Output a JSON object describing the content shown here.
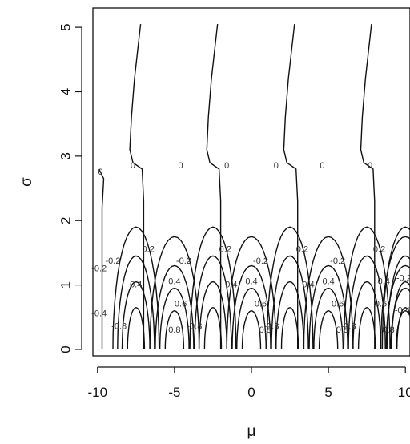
{
  "chart_data": {
    "type": "contour",
    "title": "",
    "xlabel": "μ",
    "ylabel": "σ",
    "xlim": [
      -10.3,
      10.3
    ],
    "ylim": [
      -0.1,
      5.3
    ],
    "x_ticks": [
      -10,
      -5,
      0,
      5,
      10
    ],
    "x_tick_labels": [
      "-10",
      "-5",
      "0",
      "5",
      "10"
    ],
    "y_ticks": [
      0,
      1,
      2,
      3,
      4,
      5
    ],
    "y_tick_labels": [
      "0",
      "1",
      "2",
      "3",
      "4",
      "5"
    ],
    "grid": false,
    "contour_levels": [
      -0.8,
      -0.6,
      -0.4,
      -0.2,
      0,
      0.2,
      0.4,
      0.6,
      0.8
    ],
    "period_mu": 5,
    "zero_contour_mu": [
      -10,
      -7.5,
      -2.5,
      2.5,
      7.5
    ],
    "contour_labels": [
      {
        "text": "0",
        "mu": -9.8,
        "sigma": 2.75
      },
      {
        "text": "0",
        "mu": -7.7,
        "sigma": 2.85
      },
      {
        "text": "0",
        "mu": -4.6,
        "sigma": 2.85
      },
      {
        "text": "0",
        "mu": -1.6,
        "sigma": 2.85
      },
      {
        "text": "0",
        "mu": 1.6,
        "sigma": 2.85
      },
      {
        "text": "0",
        "mu": 4.6,
        "sigma": 2.85
      },
      {
        "text": "0",
        "mu": 7.7,
        "sigma": 2.85
      },
      {
        "text": "-0.2",
        "mu": -9.9,
        "sigma": 1.25
      },
      {
        "text": "-0.2",
        "mu": -9.0,
        "sigma": 1.37
      },
      {
        "text": "-0.2",
        "mu": -4.4,
        "sigma": 1.37
      },
      {
        "text": "-0.2",
        "mu": 0.6,
        "sigma": 1.37
      },
      {
        "text": "-0.2",
        "mu": 5.6,
        "sigma": 1.37
      },
      {
        "text": "-0.2",
        "mu": 9.9,
        "sigma": 1.1
      },
      {
        "text": "0.2",
        "mu": -6.7,
        "sigma": 1.55
      },
      {
        "text": "0.2",
        "mu": -1.7,
        "sigma": 1.55
      },
      {
        "text": "0.2",
        "mu": 3.3,
        "sigma": 1.55
      },
      {
        "text": "0.2",
        "mu": 8.3,
        "sigma": 1.55
      },
      {
        "text": "-0.4",
        "mu": -9.9,
        "sigma": 0.55
      },
      {
        "text": "-0.4",
        "mu": -7.6,
        "sigma": 1.0
      },
      {
        "text": "-0.4",
        "mu": -1.4,
        "sigma": 1.0
      },
      {
        "text": "-0.4",
        "mu": 3.6,
        "sigma": 1.0
      },
      {
        "text": "-0.4",
        "mu": 9.8,
        "sigma": 0.6
      },
      {
        "text": "0.4",
        "mu": -5.0,
        "sigma": 1.05
      },
      {
        "text": "0.4",
        "mu": 0.0,
        "sigma": 1.05
      },
      {
        "text": "0.4",
        "mu": 5.0,
        "sigma": 1.05
      },
      {
        "text": "0.4",
        "mu": 8.6,
        "sigma": 1.05
      },
      {
        "text": "0.6",
        "mu": -4.6,
        "sigma": 0.7
      },
      {
        "text": "0.6",
        "mu": 0.6,
        "sigma": 0.7
      },
      {
        "text": "0.6",
        "mu": 5.6,
        "sigma": 0.7
      },
      {
        "text": "0.6",
        "mu": 8.4,
        "sigma": 0.7
      },
      {
        "text": "-0.8",
        "mu": -8.6,
        "sigma": 0.35
      },
      {
        "text": "-0.8",
        "mu": -3.7,
        "sigma": 0.35
      },
      {
        "text": "-0.8",
        "mu": 1.3,
        "sigma": 0.35
      },
      {
        "text": "-0.8",
        "mu": 6.3,
        "sigma": 0.35
      },
      {
        "text": "0.8",
        "mu": -5.0,
        "sigma": 0.3
      },
      {
        "text": "0.8",
        "mu": 0.9,
        "sigma": 0.3
      },
      {
        "text": "0.8",
        "mu": 5.9,
        "sigma": 0.3
      },
      {
        "text": "0.8",
        "mu": 8.9,
        "sigma": 0.3
      }
    ]
  }
}
